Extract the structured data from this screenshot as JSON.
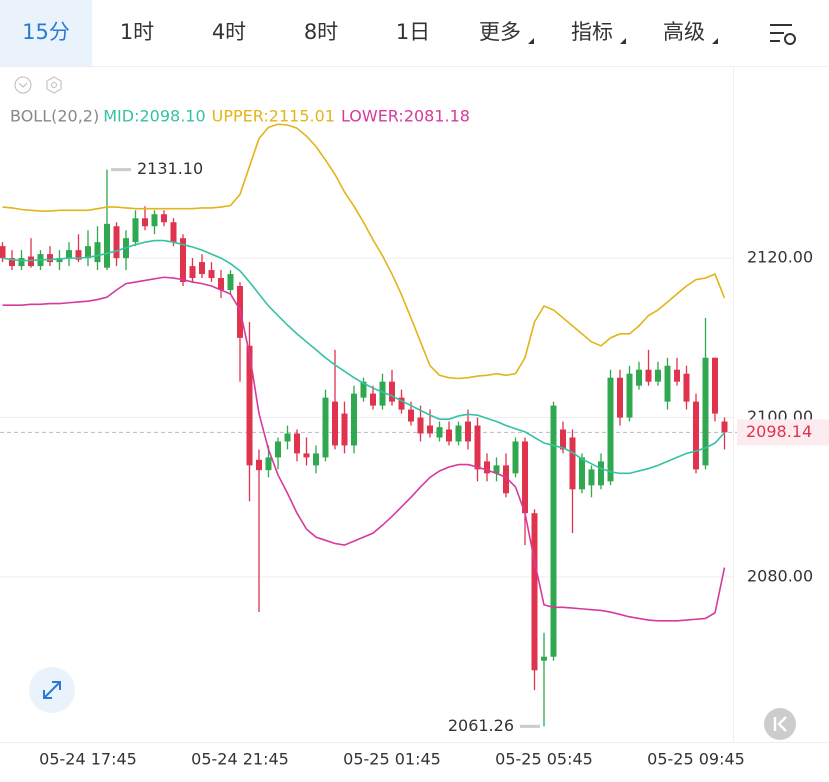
{
  "tabs": [
    "15分",
    "1时",
    "4时",
    "8时",
    "1日",
    "更多",
    "指标",
    "高级"
  ],
  "chart_data": {
    "type": "candlestick",
    "indicator": "BOLL(20,2)",
    "categories": [
      null,
      null,
      null,
      null,
      null,
      null,
      null,
      null,
      null,
      "05-24 17:45",
      null,
      null,
      null,
      null,
      null,
      null,
      null,
      null,
      null,
      null,
      null,
      null,
      null,
      null,
      null,
      "05-24 21:45",
      null,
      null,
      null,
      null,
      null,
      null,
      null,
      null,
      null,
      null,
      null,
      null,
      null,
      null,
      null,
      "05-25 01:45",
      null,
      null,
      null,
      null,
      null,
      null,
      null,
      null,
      null,
      null,
      null,
      null,
      null,
      null,
      null,
      "05-25 05:45",
      null,
      null,
      null,
      null,
      null,
      null,
      null,
      null,
      null,
      null,
      null,
      null,
      null,
      null,
      null,
      "05-25 09:45",
      null,
      null,
      null
    ],
    "open": [
      2121.5,
      2120.0,
      2119.0,
      2120.2,
      2119.0,
      2120.5,
      2119.5,
      2120.0,
      2121.0,
      2120.0,
      2119.5,
      2118.8,
      2124.0,
      2120.0,
      2122.0,
      2125.0,
      2124.0,
      2125.5,
      2124.5,
      2122.5,
      2119.0,
      2119.5,
      2118.5,
      2117.5,
      2116.0,
      2116.5,
      2109.0,
      2094.7,
      2093.4,
      2095.0,
      2097.0,
      2098.0,
      2095.5,
      2094.0,
      2095.0,
      2102.0,
      2100.5,
      2096.5,
      2102.5,
      2103.0,
      2101.5,
      2104.5,
      2102.5,
      2101.0,
      2100.0,
      2099.0,
      2097.5,
      2098.5,
      2097.0,
      2099.5,
      2099.0,
      2094.5,
      2093.0,
      2094.0,
      2093.0,
      2097.0,
      2088.0,
      2069.5,
      2070.0,
      2098.5,
      2097.5,
      2091.0,
      2091.5,
      2091.5,
      2092.0,
      2105.0,
      2100.0,
      2104.0,
      2106.0,
      2104.5,
      2102.0,
      2106.0,
      2105.5,
      2102.0,
      2094.0,
      2107.5,
      2099.5
    ],
    "high": [
      2122.0,
      2121.0,
      2121.0,
      2122.5,
      2121.0,
      2121.5,
      2121.0,
      2122.0,
      2123.0,
      2123.5,
      2124.0,
      2131.1,
      2124.5,
      2123.5,
      2126.0,
      2126.5,
      2126.0,
      2126.0,
      2125.0,
      2123.0,
      2120.0,
      2120.5,
      2119.5,
      2118.5,
      2118.5,
      2117.0,
      2112.0,
      2096.0,
      2096.5,
      2097.5,
      2099.0,
      2098.5,
      2097.5,
      2096.5,
      2103.5,
      2108.5,
      2102.0,
      2104.0,
      2105.0,
      2104.0,
      2105.5,
      2106.0,
      2103.5,
      2102.0,
      2101.5,
      2101.0,
      2099.5,
      2099.5,
      2099.5,
      2101.0,
      2100.0,
      2095.5,
      2095.0,
      2095.5,
      2097.5,
      2097.5,
      2088.5,
      2073.0,
      2102.0,
      2099.5,
      2098.5,
      2095.5,
      2094.0,
      2095.5,
      2106.0,
      2106.0,
      2106.5,
      2107.0,
      2108.5,
      2107.0,
      2107.5,
      2107.5,
      2106.5,
      2103.0,
      2112.5,
      2107.5,
      2100.0
    ],
    "low": [
      2119.5,
      2118.5,
      2118.5,
      2118.8,
      2118.5,
      2119.0,
      2118.5,
      2119.0,
      2119.5,
      2119.0,
      2118.5,
      2118.5,
      2119.0,
      2118.5,
      2121.5,
      2123.5,
      2123.0,
      2124.0,
      2121.5,
      2116.5,
      2117.0,
      2117.5,
      2117.0,
      2115.0,
      2115.5,
      2104.5,
      2089.5,
      2075.6,
      2092.5,
      2093.5,
      2096.0,
      2094.5,
      2094.0,
      2093.0,
      2094.5,
      2096.0,
      2095.5,
      2095.5,
      2102.0,
      2101.0,
      2101.0,
      2101.5,
      2100.5,
      2099.0,
      2097.0,
      2097.5,
      2097.0,
      2096.5,
      2096.5,
      2096.0,
      2092.0,
      2092.0,
      2092.0,
      2090.0,
      2092.5,
      2084.0,
      2065.8,
      2061.26,
      2069.5,
      2095.5,
      2085.5,
      2090.5,
      2090.0,
      2091.0,
      2091.5,
      2099.0,
      2099.5,
      2103.5,
      2104.0,
      2104.0,
      2101.0,
      2104.0,
      2101.0,
      2093.0,
      2093.5,
      2099.5,
      2096.0
    ],
    "close": [
      2120.0,
      2119.0,
      2120.0,
      2119.0,
      2120.5,
      2119.5,
      2120.0,
      2121.0,
      2119.8,
      2121.5,
      2122.0,
      2124.3,
      2120.0,
      2122.5,
      2125.0,
      2124.0,
      2125.5,
      2124.5,
      2122.0,
      2117.0,
      2117.5,
      2118.0,
      2117.5,
      2116.0,
      2118.0,
      2110.0,
      2094.0,
      2093.4,
      2095.0,
      2097.0,
      2098.0,
      2095.5,
      2095.0,
      2095.5,
      2102.5,
      2096.5,
      2096.5,
      2103.0,
      2104.5,
      2101.5,
      2104.5,
      2102.0,
      2101.0,
      2099.5,
      2098.0,
      2098.0,
      2098.8,
      2097.0,
      2099.0,
      2097.0,
      2093.5,
      2093.0,
      2094.0,
      2090.5,
      2097.0,
      2088.0,
      2068.3,
      2070.0,
      2101.5,
      2096.0,
      2091.0,
      2095.0,
      2093.5,
      2094.5,
      2105.0,
      2100.0,
      2105.5,
      2106.0,
      2104.5,
      2106.0,
      2106.5,
      2104.5,
      2102.0,
      2093.5,
      2107.5,
      2100.5,
      2098.14
    ],
    "up_color": "#2fa84f",
    "down_color": "#e0334d",
    "overlays": [
      {
        "name": "MID:2098.10",
        "color": "#35c2a3",
        "values": [
          2120.0,
          2119.8,
          2119.7,
          2119.7,
          2119.8,
          2119.8,
          2119.9,
          2120.0,
          2120.0,
          2120.1,
          2120.3,
          2120.6,
          2120.9,
          2121.3,
          2121.7,
          2122.0,
          2122.2,
          2122.2,
          2122.0,
          2121.7,
          2121.4,
          2121.0,
          2120.5,
          2120.0,
          2119.3,
          2118.4,
          2117.0,
          2115.5,
          2114.0,
          2112.8,
          2111.6,
          2110.5,
          2109.5,
          2108.5,
          2107.5,
          2106.6,
          2105.8,
          2105.0,
          2104.3,
          2103.7,
          2103.2,
          2102.7,
          2102.1,
          2101.5,
          2100.9,
          2100.3,
          2099.8,
          2099.8,
          2100.2,
          2100.4,
          2100.3,
          2099.9,
          2099.5,
          2099.0,
          2098.6,
          2098.2,
          2097.5,
          2096.8,
          2096.5,
          2096.2,
          2095.6,
          2094.8,
          2094.2,
          2093.6,
          2093.2,
          2093.0,
          2093.0,
          2093.3,
          2093.6,
          2094.0,
          2094.5,
          2095.0,
          2095.5,
          2095.8,
          2096.2,
          2096.8,
          2098.1
        ]
      },
      {
        "name": "UPPER:2115.01",
        "color": "#e3b419",
        "values": [
          2126.4,
          2126.3,
          2126.1,
          2126.0,
          2125.9,
          2125.9,
          2126.0,
          2126.0,
          2126.0,
          2126.0,
          2126.2,
          2126.4,
          2126.4,
          2126.3,
          2126.2,
          2126.2,
          2126.2,
          2126.2,
          2126.2,
          2126.2,
          2126.2,
          2126.3,
          2126.3,
          2126.4,
          2126.6,
          2128.0,
          2131.5,
          2135.0,
          2136.4,
          2136.8,
          2136.7,
          2136.3,
          2135.3,
          2134.0,
          2132.3,
          2130.5,
          2128.3,
          2126.5,
          2124.5,
          2122.3,
          2120.3,
          2118.0,
          2115.4,
          2112.5,
          2109.5,
          2106.5,
          2105.3,
          2105.0,
          2104.9,
          2105.0,
          2105.2,
          2105.3,
          2105.5,
          2105.3,
          2105.5,
          2107.5,
          2112.0,
          2114.0,
          2113.5,
          2112.5,
          2111.5,
          2110.5,
          2109.5,
          2109.0,
          2110.0,
          2110.5,
          2110.5,
          2111.5,
          2112.8,
          2113.5,
          2114.5,
          2115.5,
          2116.5,
          2117.3,
          2117.5,
          2118.0,
          2115.01
        ]
      },
      {
        "name": "LOWER:2081.18",
        "color": "#d63a9c",
        "values": [
          2114.1,
          2114.1,
          2114.1,
          2114.2,
          2114.2,
          2114.3,
          2114.3,
          2114.4,
          2114.5,
          2114.6,
          2114.8,
          2115.1,
          2116.0,
          2116.8,
          2117.0,
          2117.2,
          2117.4,
          2117.6,
          2117.5,
          2117.3,
          2117.0,
          2116.8,
          2116.5,
          2116.0,
          2115.5,
          2113.5,
          2108.0,
          2100.5,
          2096.0,
          2092.8,
          2090.5,
          2088.0,
          2086.0,
          2085.0,
          2084.6,
          2084.2,
          2084.0,
          2084.5,
          2085.0,
          2085.5,
          2086.5,
          2087.6,
          2088.8,
          2090.0,
          2091.3,
          2092.5,
          2093.3,
          2093.8,
          2094.1,
          2094.1,
          2093.8,
          2093.4,
          2093.0,
          2092.5,
          2091.3,
          2088.0,
          2082.0,
          2076.5,
          2076.2,
          2076.2,
          2076.1,
          2076.0,
          2075.9,
          2075.8,
          2075.6,
          2075.3,
          2075.0,
          2074.8,
          2074.6,
          2074.5,
          2074.5,
          2074.5,
          2074.6,
          2074.7,
          2074.8,
          2075.5,
          2081.18
        ]
      }
    ],
    "max_label": {
      "value": 2131.1,
      "label": "2131.10"
    },
    "min_label": {
      "value": 2061.26,
      "label": "2061.26"
    },
    "last_price": {
      "value": 2098.14,
      "label": "2098.14"
    },
    "ylim": [
      2059.3,
      2144.1
    ],
    "yticks": [
      {
        "value": 2120,
        "label": "2120.00"
      },
      {
        "value": 2100,
        "label": "2100.00"
      },
      {
        "value": 2080,
        "label": "2080.00"
      }
    ],
    "grid": true
  }
}
